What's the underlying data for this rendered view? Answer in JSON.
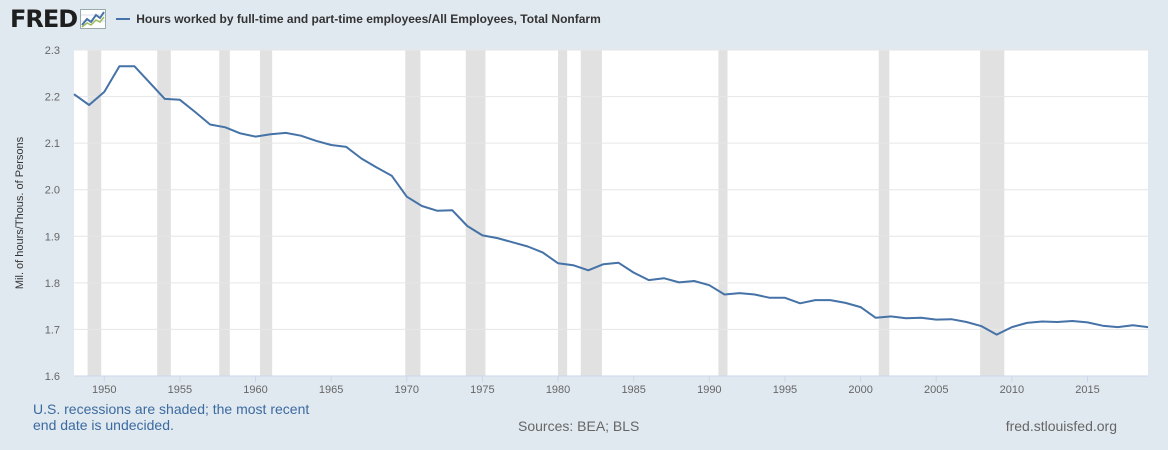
{
  "logo": {
    "text": "FRED",
    "icon": "fred-graph-icon"
  },
  "colors": {
    "series": "#4572a7",
    "recession": "#e1e1e1",
    "background": "#e1e9f0",
    "plot": "#ffffff",
    "grid": "#e6e6e6"
  },
  "footer": {
    "recession_note": "U.S. recessions are shaded; the most recent end date is undecided.",
    "sources": "Sources: BEA; BLS",
    "url": "fred.stlouisfed.org"
  },
  "chart_data": {
    "type": "line",
    "title": "",
    "legend_position": "top-left",
    "xlabel": "",
    "ylabel": "Mil. of hours/Thous. of Persons",
    "xlim": [
      1948,
      2019
    ],
    "ylim": [
      1.6,
      2.3
    ],
    "yticks": [
      "1.6",
      "1.7",
      "1.8",
      "1.9",
      "2.0",
      "2.1",
      "2.2",
      "2.3"
    ],
    "xticks": [
      "1950",
      "1955",
      "1960",
      "1965",
      "1970",
      "1975",
      "1980",
      "1985",
      "1990",
      "1995",
      "2000",
      "2005",
      "2010",
      "2015"
    ],
    "grid": true,
    "recessions": [
      [
        1948.9,
        1949.8
      ],
      [
        1953.5,
        1954.4
      ],
      [
        1957.6,
        1958.3
      ],
      [
        1960.3,
        1961.1
      ],
      [
        1969.9,
        1970.9
      ],
      [
        1973.9,
        1975.2
      ],
      [
        1980.0,
        1980.6
      ],
      [
        1981.5,
        1982.9
      ],
      [
        1990.6,
        1991.2
      ],
      [
        2001.2,
        2001.9
      ],
      [
        2007.9,
        2009.5
      ]
    ],
    "series": [
      {
        "name": "Hours worked by full-time and part-time employees/All Employees, Total Nonfarm",
        "x": [
          1948,
          1949,
          1950,
          1951,
          1952,
          1953,
          1954,
          1955,
          1956,
          1957,
          1958,
          1959,
          1960,
          1961,
          1962,
          1963,
          1964,
          1965,
          1966,
          1967,
          1968,
          1969,
          1970,
          1971,
          1972,
          1973,
          1974,
          1975,
          1976,
          1977,
          1978,
          1979,
          1980,
          1981,
          1982,
          1983,
          1984,
          1985,
          1986,
          1987,
          1988,
          1989,
          1990,
          1991,
          1992,
          1993,
          1994,
          1995,
          1996,
          1997,
          1998,
          1999,
          2000,
          2001,
          2002,
          2003,
          2004,
          2005,
          2006,
          2007,
          2008,
          2009,
          2010,
          2011,
          2012,
          2013,
          2014,
          2015,
          2016,
          2017,
          2018,
          2019
        ],
        "values": [
          2.205,
          2.182,
          2.21,
          2.265,
          2.265,
          2.23,
          2.195,
          2.193,
          2.167,
          2.14,
          2.134,
          2.121,
          2.114,
          2.119,
          2.122,
          2.116,
          2.105,
          2.096,
          2.092,
          2.067,
          2.048,
          2.03,
          1.985,
          1.965,
          1.955,
          1.956,
          1.922,
          1.902,
          1.896,
          1.887,
          1.878,
          1.865,
          1.842,
          1.838,
          1.827,
          1.84,
          1.843,
          1.822,
          1.806,
          1.81,
          1.801,
          1.804,
          1.795,
          1.775,
          1.778,
          1.775,
          1.768,
          1.768,
          1.756,
          1.763,
          1.763,
          1.757,
          1.748,
          1.725,
          1.728,
          1.724,
          1.725,
          1.721,
          1.722,
          1.716,
          1.707,
          1.689,
          1.705,
          1.714,
          1.717,
          1.716,
          1.718,
          1.715,
          1.708,
          1.705,
          1.709,
          1.705
        ]
      }
    ]
  }
}
